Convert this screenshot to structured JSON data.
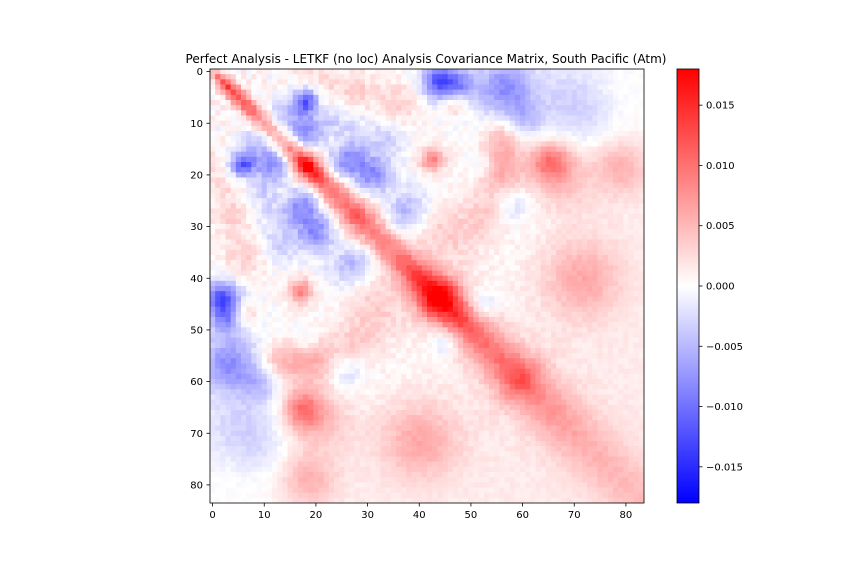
{
  "chart_data": {
    "type": "heatmap",
    "title": "Perfect Analysis - LETKF (no loc) Analysis Covariance Matrix, South Pacific (Atm)",
    "xlabel": "",
    "ylabel": "",
    "size": 84,
    "xlim": [
      -0.5,
      83.5
    ],
    "ylim": [
      83.5,
      -0.5
    ],
    "x_ticks": [
      0,
      10,
      20,
      30,
      40,
      50,
      60,
      70,
      80
    ],
    "y_ticks": [
      0,
      10,
      20,
      30,
      40,
      50,
      60,
      70,
      80
    ],
    "colormap": "bwr",
    "colormap_colors": [
      "#0000ff",
      "#ffffff",
      "#ff0000"
    ],
    "vmin": -0.018,
    "vmax": 0.018,
    "colorbar_ticks": [
      -0.015,
      -0.01,
      -0.005,
      0.0,
      0.005,
      0.01,
      0.015
    ],
    "colorbar_tick_labels": [
      "−0.015",
      "−0.010",
      "−0.005",
      "0.000",
      "0.005",
      "0.010",
      "0.015"
    ],
    "diagonal_profile": [
      {
        "i": 0,
        "v": 0.0045
      },
      {
        "i": 2,
        "v": 0.0095
      },
      {
        "i": 4,
        "v": 0.0105
      },
      {
        "i": 6,
        "v": 0.009
      },
      {
        "i": 8,
        "v": 0.008
      },
      {
        "i": 10,
        "v": 0.007
      },
      {
        "i": 12,
        "v": 0.0055
      },
      {
        "i": 14,
        "v": 0.0065
      },
      {
        "i": 16,
        "v": 0.009
      },
      {
        "i": 18,
        "v": 0.0155
      },
      {
        "i": 20,
        "v": 0.012
      },
      {
        "i": 22,
        "v": 0.0085
      },
      {
        "i": 24,
        "v": 0.007
      },
      {
        "i": 26,
        "v": 0.0075
      },
      {
        "i": 28,
        "v": 0.0095
      },
      {
        "i": 30,
        "v": 0.0075
      },
      {
        "i": 32,
        "v": 0.0065
      },
      {
        "i": 34,
        "v": 0.0065
      },
      {
        "i": 36,
        "v": 0.0075
      },
      {
        "i": 38,
        "v": 0.0085
      },
      {
        "i": 40,
        "v": 0.0105
      },
      {
        "i": 42,
        "v": 0.0135
      },
      {
        "i": 44,
        "v": 0.0175
      },
      {
        "i": 46,
        "v": 0.0125
      },
      {
        "i": 48,
        "v": 0.0105
      },
      {
        "i": 50,
        "v": 0.0085
      },
      {
        "i": 52,
        "v": 0.0075
      },
      {
        "i": 54,
        "v": 0.0075
      },
      {
        "i": 56,
        "v": 0.0075
      },
      {
        "i": 58,
        "v": 0.0085
      },
      {
        "i": 60,
        "v": 0.0095
      },
      {
        "i": 62,
        "v": 0.0065
      },
      {
        "i": 64,
        "v": 0.0055
      },
      {
        "i": 66,
        "v": 0.005
      },
      {
        "i": 68,
        "v": 0.0045
      },
      {
        "i": 70,
        "v": 0.004
      },
      {
        "i": 72,
        "v": 0.0035
      },
      {
        "i": 76,
        "v": 0.003
      },
      {
        "i": 83,
        "v": 0.0025
      }
    ],
    "features": [
      {
        "i": 2,
        "j": 44,
        "v": -0.0055,
        "r": 3.0
      },
      {
        "i": 3,
        "j": 20,
        "v": 0.003,
        "r": 3.5
      },
      {
        "i": 3,
        "j": 55,
        "v": -0.003,
        "r": 4.5
      },
      {
        "i": 5,
        "j": 18,
        "v": -0.006,
        "r": 2.0
      },
      {
        "i": 6,
        "j": 36,
        "v": 0.003,
        "r": 3.5
      },
      {
        "i": 8,
        "j": 62,
        "v": -0.002,
        "r": 8.0
      },
      {
        "i": 10,
        "j": 17,
        "v": -0.005,
        "r": 2.0
      },
      {
        "i": 12,
        "j": 28,
        "v": -0.0025,
        "r": 3.0
      },
      {
        "i": 13,
        "j": 8,
        "v": -0.003,
        "r": 2.5
      },
      {
        "i": 17,
        "j": 43,
        "v": 0.0045,
        "r": 1.8
      },
      {
        "i": 17,
        "j": 56,
        "v": 0.0045,
        "r": 4.0
      },
      {
        "i": 17,
        "j": 65,
        "v": 0.005,
        "r": 2.5
      },
      {
        "i": 17,
        "j": 78,
        "v": 0.003,
        "r": 3.5
      },
      {
        "i": 18,
        "j": 6,
        "v": -0.0075,
        "r": 1.6
      },
      {
        "i": 18,
        "j": 13,
        "v": -0.006,
        "r": 2.0
      },
      {
        "i": 17,
        "j": 27,
        "v": -0.006,
        "r": 2.2
      },
      {
        "i": 20,
        "j": 32,
        "v": -0.005,
        "r": 2.5
      },
      {
        "i": 20,
        "j": 55,
        "v": 0.003,
        "r": 3.5
      },
      {
        "i": 21,
        "j": 68,
        "v": 0.0035,
        "r": 4.5
      },
      {
        "i": 22,
        "j": 10,
        "v": -0.0035,
        "r": 2.5
      },
      {
        "i": 24,
        "j": 18,
        "v": -0.0045,
        "r": 2.0
      },
      {
        "i": 26,
        "j": 38,
        "v": -0.003,
        "r": 3.0
      },
      {
        "i": 28,
        "j": 4,
        "v": 0.003,
        "r": 2.5
      },
      {
        "i": 30,
        "j": 20,
        "v": -0.004,
        "r": 2.5
      },
      {
        "i": 31,
        "j": 46,
        "v": 0.003,
        "r": 4.0
      },
      {
        "i": 34,
        "j": 13,
        "v": -0.003,
        "r": 2.5
      },
      {
        "i": 37,
        "j": 28,
        "v": -0.003,
        "r": 2.5
      },
      {
        "i": 40,
        "j": 72,
        "v": 0.003,
        "r": 5.0
      },
      {
        "i": 42,
        "j": 17,
        "v": 0.0045,
        "r": 1.5
      },
      {
        "i": 44,
        "j": 2,
        "v": -0.007,
        "r": 2.0
      },
      {
        "i": 45,
        "j": 52,
        "v": -0.004,
        "r": 2.0
      },
      {
        "i": 47,
        "j": 6,
        "v": 0.0045,
        "r": 2.0
      },
      {
        "i": 48,
        "j": 3,
        "v": -0.006,
        "r": 2.0
      },
      {
        "i": 52,
        "j": 18,
        "v": -0.004,
        "r": 2.0
      },
      {
        "i": 53,
        "j": 28,
        "v": 0.003,
        "r": 3.0
      },
      {
        "i": 56,
        "j": 12,
        "v": 0.0035,
        "r": 2.5
      },
      {
        "i": 57,
        "j": 3,
        "v": -0.004,
        "r": 3.0
      },
      {
        "i": 58,
        "j": 26,
        "v": -0.003,
        "r": 2.5
      },
      {
        "i": 60,
        "j": 9,
        "v": -0.0035,
        "r": 2.5
      },
      {
        "i": 66,
        "j": 18,
        "v": 0.004,
        "r": 3.0
      },
      {
        "i": 70,
        "j": 5,
        "v": -0.002,
        "r": 4.0
      },
      {
        "i": 74,
        "j": 11,
        "v": -0.0015,
        "r": 4.0
      },
      {
        "i": 70,
        "j": 40,
        "v": 0.002,
        "r": 6.0
      },
      {
        "i": 80,
        "j": 20,
        "v": 0.0025,
        "r": 3.5
      }
    ]
  }
}
